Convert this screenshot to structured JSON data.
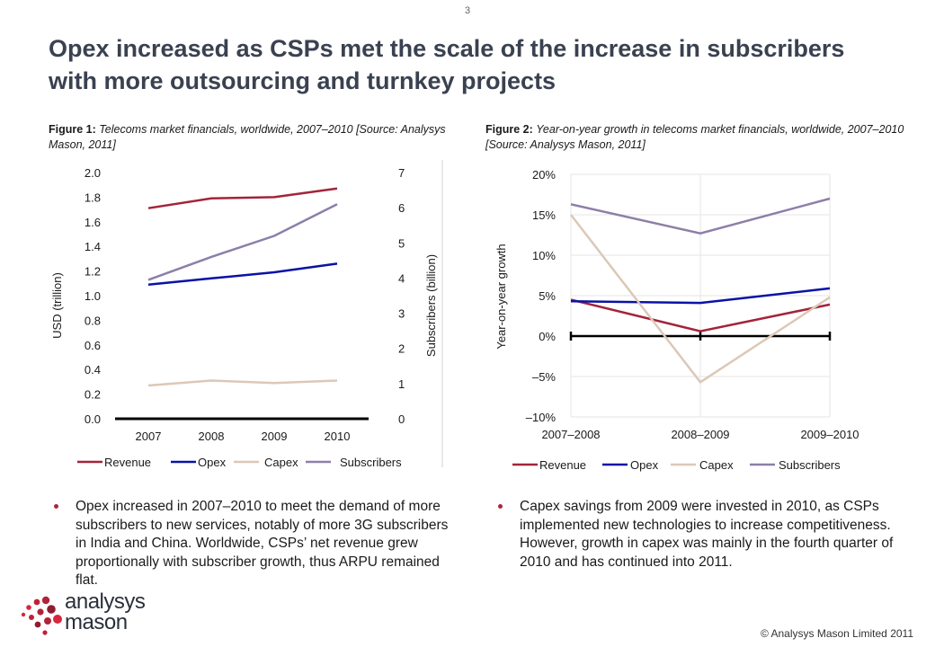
{
  "page_number": "3",
  "title": "Opex increased as CSPs met the scale of the increase in subscribers with more outsourcing and turnkey projects",
  "figure1": {
    "label": "Figure 1:",
    "caption": "Telecoms market financials, worldwide, 2007–2010 [Source: Analysys Mason, 2011]"
  },
  "figure2": {
    "label": "Figure 2:",
    "caption": "Year-on-year growth in telecoms market financials, worldwide, 2007–2010 [Source: Analysys Mason, 2011]"
  },
  "colors": {
    "revenue": "#a3243b",
    "opex": "#0a12a6",
    "capex": "#dcc8b8",
    "subscribers": "#8c7fa8",
    "accent": "#b0243a"
  },
  "chart_data": [
    {
      "type": "line",
      "categories": [
        "2007",
        "2008",
        "2009",
        "2010"
      ],
      "ylabel": "USD (trillion)",
      "y2label": "Subscribers (billion)",
      "ylim": [
        0,
        2.0
      ],
      "y2lim": [
        0,
        7
      ],
      "yticks": [
        "0.0",
        "0.2",
        "0.4",
        "0.6",
        "0.8",
        "1.0",
        "1.2",
        "1.4",
        "1.6",
        "1.8",
        "2.0"
      ],
      "y2ticks": [
        "0",
        "1",
        "2",
        "3",
        "4",
        "5",
        "6",
        "7"
      ],
      "grid": false,
      "legend_position": "bottom",
      "series": [
        {
          "name": "Revenue",
          "axis": "left",
          "values": [
            1.71,
            1.79,
            1.8,
            1.87
          ]
        },
        {
          "name": "Opex",
          "axis": "left",
          "values": [
            1.09,
            1.14,
            1.19,
            1.26
          ]
        },
        {
          "name": "Capex",
          "axis": "left",
          "values": [
            0.27,
            0.31,
            0.29,
            0.31
          ]
        },
        {
          "name": "Subscribers",
          "axis": "right",
          "values": [
            3.95,
            4.6,
            5.2,
            6.1
          ]
        }
      ]
    },
    {
      "type": "line",
      "categories": [
        "2007–2008",
        "2008–2009",
        "2009–2010"
      ],
      "ylabel": "Year-on-year growth",
      "ylim": [
        -10,
        20
      ],
      "yticks": [
        "–10%",
        "–5%",
        "0%",
        "5%",
        "10%",
        "15%",
        "20%"
      ],
      "grid": true,
      "legend_position": "bottom",
      "series": [
        {
          "name": "Revenue",
          "values": [
            4.5,
            0.6,
            3.9
          ]
        },
        {
          "name": "Opex",
          "values": [
            4.3,
            4.1,
            5.9
          ]
        },
        {
          "name": "Capex",
          "values": [
            15.0,
            -5.7,
            4.8
          ]
        },
        {
          "name": "Subscribers",
          "values": [
            16.3,
            12.7,
            17.0
          ]
        }
      ]
    }
  ],
  "bullets": [
    "Opex increased in 2007–2010 to meet the demand of more subscribers to new services, notably of more 3G subscribers in India and China. Worldwide, CSPs’ net revenue grew proportionally with subscriber growth, thus ARPU remained flat.",
    "Capex savings from 2009 were invested in 2010, as CSPs implemented new technologies to increase competitiveness. However, growth in capex was mainly in the fourth quarter of 2010 and has continued into 2011."
  ],
  "logo": {
    "line1": "analysys",
    "line2": "mason"
  },
  "copyright": "© Analysys Mason Limited 2011"
}
